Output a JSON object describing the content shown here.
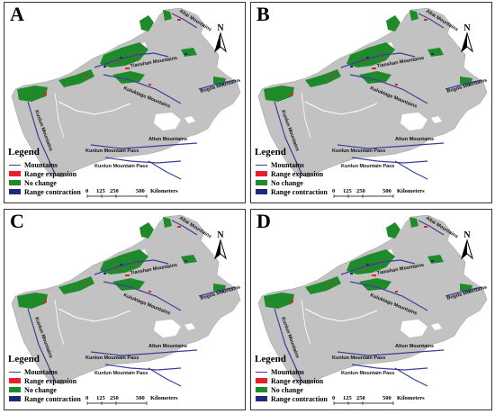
{
  "panels": [
    {
      "letter": "A"
    },
    {
      "letter": "B"
    },
    {
      "letter": "C"
    },
    {
      "letter": "D"
    }
  ],
  "legend": {
    "title": "Legend",
    "items": [
      {
        "label": "Mountains",
        "kind": "line",
        "color": "#3a3f9a"
      },
      {
        "label": "Range expansion",
        "kind": "fill",
        "color": "#e8202a"
      },
      {
        "label": "No change",
        "kind": "fill",
        "color": "#1f8a2a"
      },
      {
        "label": "Range contraction",
        "kind": "fill",
        "color": "#1c2a7a"
      }
    ]
  },
  "scale": {
    "ticks": [
      "0",
      "125",
      "250",
      "500"
    ],
    "unit": "Kilometers"
  },
  "north_label": "N",
  "mountains": {
    "altai": "Altai Mountains",
    "bogda": "Bogda Mountains",
    "kuluktage": "Kuluktage Mountains",
    "altun": "Altun Mountains",
    "kunlun_pass_1": "Kunlun Mountain Pass",
    "kunlun_pass_2": "Kunlun Mountain Pass",
    "tianshan": "Tianshan Mountains",
    "kunlun": "Kunlun Mountains"
  },
  "colors": {
    "region": "#c2c2c2",
    "mountain_line": "#3a3f9a",
    "expansion": "#e8202a",
    "no_change": "#1f8a2a",
    "contraction": "#1c2a7a"
  }
}
